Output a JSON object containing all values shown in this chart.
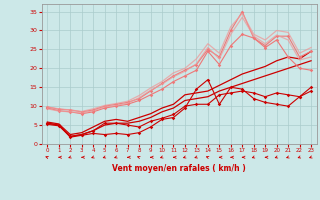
{
  "xlabel": "Vent moyen/en rafales ( km/h )",
  "bg_color": "#cce8e8",
  "grid_color": "#aacccc",
  "xlim": [
    -0.5,
    23.5
  ],
  "ylim": [
    0,
    37
  ],
  "xticks": [
    0,
    1,
    2,
    3,
    4,
    5,
    6,
    7,
    8,
    9,
    10,
    11,
    12,
    13,
    14,
    15,
    16,
    17,
    18,
    19,
    20,
    21,
    22,
    23
  ],
  "yticks": [
    0,
    5,
    10,
    15,
    20,
    25,
    30,
    35
  ],
  "lines": [
    {
      "x": [
        0,
        1,
        2,
        3,
        4,
        5,
        6,
        7,
        8,
        9,
        10,
        11,
        12,
        13,
        14,
        15,
        16,
        17,
        18,
        19,
        20,
        21,
        22,
        23
      ],
      "y": [
        5.5,
        5.0,
        1.8,
        2.3,
        2.8,
        2.5,
        2.8,
        2.5,
        3.0,
        4.5,
        6.5,
        7.0,
        9.5,
        14.5,
        17.0,
        10.5,
        15.0,
        14.5,
        12.0,
        11.0,
        10.5,
        10.0,
        12.5,
        15.0
      ],
      "color": "#cc0000",
      "linewidth": 0.8,
      "marker": "D",
      "markersize": 1.8,
      "alpha": 1.0
    },
    {
      "x": [
        0,
        1,
        2,
        3,
        4,
        5,
        6,
        7,
        8,
        9,
        10,
        11,
        12,
        13,
        14,
        15,
        16,
        17,
        18,
        19,
        20,
        21,
        22,
        23
      ],
      "y": [
        5.2,
        4.8,
        2.0,
        2.5,
        3.5,
        5.5,
        5.5,
        5.0,
        4.5,
        6.0,
        6.8,
        7.8,
        10.0,
        10.5,
        10.5,
        13.0,
        13.5,
        14.0,
        13.5,
        12.5,
        13.5,
        13.0,
        12.5,
        14.0
      ],
      "color": "#cc0000",
      "linewidth": 0.8,
      "marker": "D",
      "markersize": 1.8,
      "alpha": 1.0
    },
    {
      "x": [
        0,
        1,
        2,
        3,
        4,
        5,
        6,
        7,
        8,
        9,
        10,
        11,
        12,
        13,
        14,
        15,
        16,
        17,
        18,
        19,
        20,
        21,
        22,
        23
      ],
      "y": [
        5.5,
        5.0,
        2.0,
        2.5,
        3.5,
        5.0,
        5.5,
        5.5,
        6.0,
        7.0,
        8.5,
        9.5,
        11.5,
        12.0,
        12.5,
        14.0,
        15.0,
        16.0,
        17.0,
        18.0,
        19.0,
        20.0,
        21.0,
        22.0
      ],
      "color": "#cc0000",
      "linewidth": 0.9,
      "marker": null,
      "alpha": 1.0
    },
    {
      "x": [
        0,
        1,
        2,
        3,
        4,
        5,
        6,
        7,
        8,
        9,
        10,
        11,
        12,
        13,
        14,
        15,
        16,
        17,
        18,
        19,
        20,
        21,
        22,
        23
      ],
      "y": [
        5.8,
        5.3,
        2.5,
        3.0,
        4.5,
        6.0,
        6.5,
        6.0,
        7.0,
        8.0,
        9.5,
        10.5,
        13.0,
        13.5,
        14.0,
        15.5,
        17.0,
        18.5,
        19.5,
        20.5,
        22.0,
        23.0,
        22.5,
        24.5
      ],
      "color": "#cc0000",
      "linewidth": 0.9,
      "marker": null,
      "alpha": 1.0
    },
    {
      "x": [
        0,
        1,
        2,
        3,
        4,
        5,
        6,
        7,
        8,
        9,
        10,
        11,
        12,
        13,
        14,
        15,
        16,
        17,
        18,
        19,
        20,
        21,
        22,
        23
      ],
      "y": [
        9.5,
        8.8,
        8.5,
        8.0,
        8.5,
        9.5,
        10.0,
        10.5,
        11.5,
        13.0,
        14.5,
        16.5,
        18.0,
        19.5,
        24.5,
        21.0,
        26.0,
        29.0,
        28.0,
        25.5,
        27.5,
        23.0,
        20.0,
        19.5
      ],
      "color": "#ee7777",
      "linewidth": 0.8,
      "marker": "D",
      "markersize": 1.8,
      "alpha": 1.0
    },
    {
      "x": [
        0,
        1,
        2,
        3,
        4,
        5,
        6,
        7,
        8,
        9,
        10,
        11,
        12,
        13,
        14,
        15,
        16,
        17,
        18,
        19,
        20,
        21,
        22,
        23
      ],
      "y": [
        9.8,
        9.2,
        9.0,
        8.5,
        9.0,
        10.0,
        10.5,
        11.0,
        12.0,
        14.0,
        16.0,
        18.0,
        19.5,
        21.0,
        25.0,
        23.0,
        30.0,
        35.0,
        28.0,
        26.0,
        28.5,
        28.5,
        23.0,
        24.5
      ],
      "color": "#ee7777",
      "linewidth": 0.8,
      "marker": "D",
      "markersize": 1.8,
      "alpha": 1.0
    },
    {
      "x": [
        0,
        1,
        2,
        3,
        4,
        5,
        6,
        7,
        8,
        9,
        10,
        11,
        12,
        13,
        14,
        15,
        16,
        17,
        18,
        19,
        20,
        21,
        22,
        23
      ],
      "y": [
        9.3,
        8.7,
        8.5,
        8.2,
        8.8,
        9.8,
        10.2,
        10.8,
        12.2,
        14.2,
        15.8,
        17.8,
        19.2,
        21.2,
        25.5,
        22.5,
        29.0,
        33.5,
        28.5,
        26.5,
        28.8,
        27.5,
        22.2,
        23.0
      ],
      "color": "#ee9999",
      "linewidth": 0.9,
      "marker": null,
      "alpha": 0.75
    },
    {
      "x": [
        0,
        1,
        2,
        3,
        4,
        5,
        6,
        7,
        8,
        9,
        10,
        11,
        12,
        13,
        14,
        15,
        16,
        17,
        18,
        19,
        20,
        21,
        22,
        23
      ],
      "y": [
        9.8,
        9.3,
        9.0,
        8.6,
        9.3,
        10.2,
        10.7,
        11.3,
        12.8,
        14.8,
        16.5,
        18.8,
        20.0,
        22.5,
        26.5,
        24.0,
        31.0,
        34.5,
        29.0,
        27.5,
        30.0,
        29.5,
        24.0,
        25.5
      ],
      "color": "#ee9999",
      "linewidth": 0.9,
      "marker": null,
      "alpha": 0.75
    }
  ]
}
